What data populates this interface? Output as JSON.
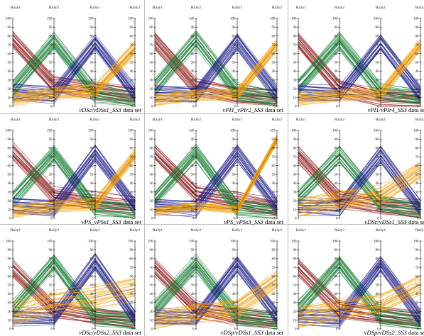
{
  "colors": {
    "red": "#8b0d0d",
    "green": "#0b7a2c",
    "blue": "#1a1a8a",
    "orange": "#f5a10a"
  },
  "chart_data": [
    {
      "type": "line",
      "chart_kind": "parallel-coordinates",
      "axes": [
        "Ra3y1",
        "Ra3y2",
        "Ra3y1",
        "Ra3y2"
      ],
      "yticks": [
        0,
        10,
        20,
        30,
        40,
        50,
        60,
        70,
        80,
        90,
        100
      ],
      "ylim": [
        0,
        100
      ],
      "caption_label": "vDSc/vDSs1_SS3",
      "caption_suffix": "data set",
      "series": [
        {
          "color": "red",
          "values": [
            76,
            25,
            18,
            12
          ],
          "spread": 9
        },
        {
          "color": "green",
          "values": [
            20,
            74,
            15,
            8
          ],
          "spread": 9
        },
        {
          "color": "blue",
          "values": [
            16,
            13,
            72,
            14
          ],
          "spread": 9
        },
        {
          "color": "orange",
          "values": [
            8,
            15,
            18,
            66
          ],
          "spread": 7
        }
      ]
    },
    {
      "type": "line",
      "chart_kind": "parallel-coordinates",
      "axes": [
        "Ra3y1",
        "Ra3y2",
        "Ra3y1",
        "Ra3y2"
      ],
      "yticks": [
        0,
        10,
        20,
        30,
        40,
        50,
        60,
        70,
        80,
        90,
        100
      ],
      "ylim": [
        0,
        100
      ],
      "caption_label": "vPI1_vPIr2_SS3",
      "caption_suffix": "data set",
      "series": [
        {
          "color": "red",
          "values": [
            75,
            22,
            13,
            10
          ],
          "spread": 9
        },
        {
          "color": "green",
          "values": [
            22,
            76,
            16,
            9
          ],
          "spread": 9
        },
        {
          "color": "blue",
          "values": [
            15,
            14,
            74,
            14
          ],
          "spread": 9
        },
        {
          "color": "orange",
          "values": [
            7,
            13,
            14,
            70
          ],
          "spread": 6
        }
      ]
    },
    {
      "type": "line",
      "chart_kind": "parallel-coordinates",
      "axes": [
        "Ra3y1",
        "Ra3y2",
        "Ra3y1",
        "Ra3y2"
      ],
      "yticks": [
        0,
        10,
        20,
        30,
        40,
        50,
        60,
        70,
        80,
        90,
        100
      ],
      "ylim": [
        0,
        100
      ],
      "caption_label": "vPI1/vPIr4_SS3",
      "caption_suffix": "data set",
      "series": [
        {
          "color": "red",
          "values": [
            74,
            20,
            10,
            8
          ],
          "spread": 9
        },
        {
          "color": "green",
          "values": [
            22,
            74,
            16,
            10
          ],
          "spread": 9
        },
        {
          "color": "blue",
          "values": [
            16,
            14,
            72,
            14
          ],
          "spread": 9
        },
        {
          "color": "orange",
          "values": [
            8,
            13,
            14,
            70
          ],
          "spread": 6
        }
      ]
    },
    {
      "type": "line",
      "chart_kind": "parallel-coordinates",
      "axes": [
        "Ra3y1",
        "Ra3y2",
        "Ra3y1",
        "Ra3y2"
      ],
      "yticks": [
        0,
        10,
        20,
        30,
        40,
        50,
        60,
        70,
        80,
        90,
        100
      ],
      "ylim": [
        0,
        100
      ],
      "caption_label": "vPS_vPSs1_SS3",
      "caption_suffix": "data set",
      "series": [
        {
          "color": "red",
          "values": [
            76,
            26,
            20,
            14
          ],
          "spread": 9
        },
        {
          "color": "green",
          "values": [
            22,
            74,
            12,
            8
          ],
          "spread": 9
        },
        {
          "color": "blue",
          "values": [
            14,
            12,
            74,
            14
          ],
          "spread": 9
        },
        {
          "color": "orange",
          "values": [
            8,
            14,
            16,
            72
          ],
          "spread": 6
        }
      ]
    },
    {
      "type": "line",
      "chart_kind": "parallel-coordinates",
      "axes": [
        "Ra3y1",
        "Ra3y2",
        "Ra3y1",
        "Ra3y2"
      ],
      "yticks": [
        0,
        10,
        20,
        30,
        40,
        50,
        60,
        70,
        80,
        90,
        100
      ],
      "ylim": [
        0,
        100
      ],
      "caption_label": "vPS_vPSs3_SS3",
      "caption_suffix": "data set",
      "series": [
        {
          "color": "red",
          "values": [
            75,
            28,
            20,
            12
          ],
          "spread": 9
        },
        {
          "color": "green",
          "values": [
            22,
            74,
            12,
            8
          ],
          "spread": 9
        },
        {
          "color": "blue",
          "values": [
            14,
            12,
            74,
            14
          ],
          "spread": 9
        },
        {
          "color": "orange",
          "values": [
            8,
            14,
            10,
            90
          ],
          "spread": 4
        }
      ]
    },
    {
      "type": "line",
      "chart_kind": "parallel-coordinates",
      "axes": [
        "Ra3y1",
        "Ra3y2",
        "Ra3y1",
        "Ra3y2"
      ],
      "yticks": [
        0,
        10,
        20,
        30,
        40,
        50,
        60,
        70,
        80,
        90,
        100
      ],
      "ylim": [
        0,
        100
      ],
      "caption_label": "vDSc/vDSs1_SS3",
      "caption_suffix": "data set",
      "series": [
        {
          "color": "red",
          "values": [
            72,
            22,
            14,
            10
          ],
          "spread": 9
        },
        {
          "color": "green",
          "values": [
            24,
            72,
            16,
            10
          ],
          "spread": 9
        },
        {
          "color": "blue",
          "values": [
            14,
            12,
            72,
            12
          ],
          "spread": 9
        },
        {
          "color": "orange",
          "values": [
            12,
            20,
            26,
            55
          ],
          "spread": 10
        }
      ]
    },
    {
      "type": "line",
      "chart_kind": "parallel-coordinates",
      "axes": [
        "Ra3y1",
        "Ra3y2",
        "Ra3y1",
        "Ra3y2"
      ],
      "yticks": [
        0,
        10,
        20,
        30,
        40,
        50,
        60,
        70,
        80,
        90,
        100
      ],
      "ylim": [
        0,
        100
      ],
      "caption_label": "vDSc/vDSs2_SS3",
      "caption_suffix": "data set",
      "series": [
        {
          "color": "red",
          "values": [
            68,
            22,
            14,
            10
          ],
          "spread": 9
        },
        {
          "color": "green",
          "values": [
            22,
            76,
            14,
            8
          ],
          "spread": 9
        },
        {
          "color": "blue",
          "values": [
            14,
            12,
            76,
            12
          ],
          "spread": 9
        },
        {
          "color": "orange",
          "values": [
            18,
            30,
            36,
            46
          ],
          "spread": 12
        }
      ]
    },
    {
      "type": "line",
      "chart_kind": "parallel-coordinates",
      "axes": [
        "Ra3y1",
        "Ra3y2",
        "Ra3y1",
        "Ra3y2"
      ],
      "yticks": [
        0,
        10,
        20,
        30,
        40,
        50,
        60,
        70,
        80,
        90,
        100
      ],
      "ylim": [
        0,
        100
      ],
      "caption_label": "vDSp/vDSs1_SS3",
      "caption_suffix": "data set",
      "series": [
        {
          "color": "red",
          "values": [
            70,
            22,
            14,
            10
          ],
          "spread": 9
        },
        {
          "color": "green",
          "values": [
            22,
            74,
            14,
            8
          ],
          "spread": 9
        },
        {
          "color": "blue",
          "values": [
            14,
            12,
            74,
            14
          ],
          "spread": 9
        },
        {
          "color": "orange",
          "values": [
            10,
            18,
            24,
            56
          ],
          "spread": 10
        }
      ]
    },
    {
      "type": "line",
      "chart_kind": "parallel-coordinates",
      "axes": [
        "Ra3y1",
        "Ra3y2",
        "Ra3y1",
        "Ra3y2"
      ],
      "yticks": [
        0,
        10,
        20,
        30,
        40,
        50,
        60,
        70,
        80,
        90,
        100
      ],
      "ylim": [
        0,
        100
      ],
      "caption_label": "vDSp/vDSs2_SS3",
      "caption_suffix": "data set",
      "series": [
        {
          "color": "red",
          "values": [
            70,
            22,
            14,
            10
          ],
          "spread": 9
        },
        {
          "color": "green",
          "values": [
            22,
            74,
            14,
            8
          ],
          "spread": 9
        },
        {
          "color": "blue",
          "values": [
            14,
            12,
            74,
            12
          ],
          "spread": 9
        },
        {
          "color": "orange",
          "values": [
            14,
            22,
            28,
            50
          ],
          "spread": 11
        }
      ]
    }
  ]
}
